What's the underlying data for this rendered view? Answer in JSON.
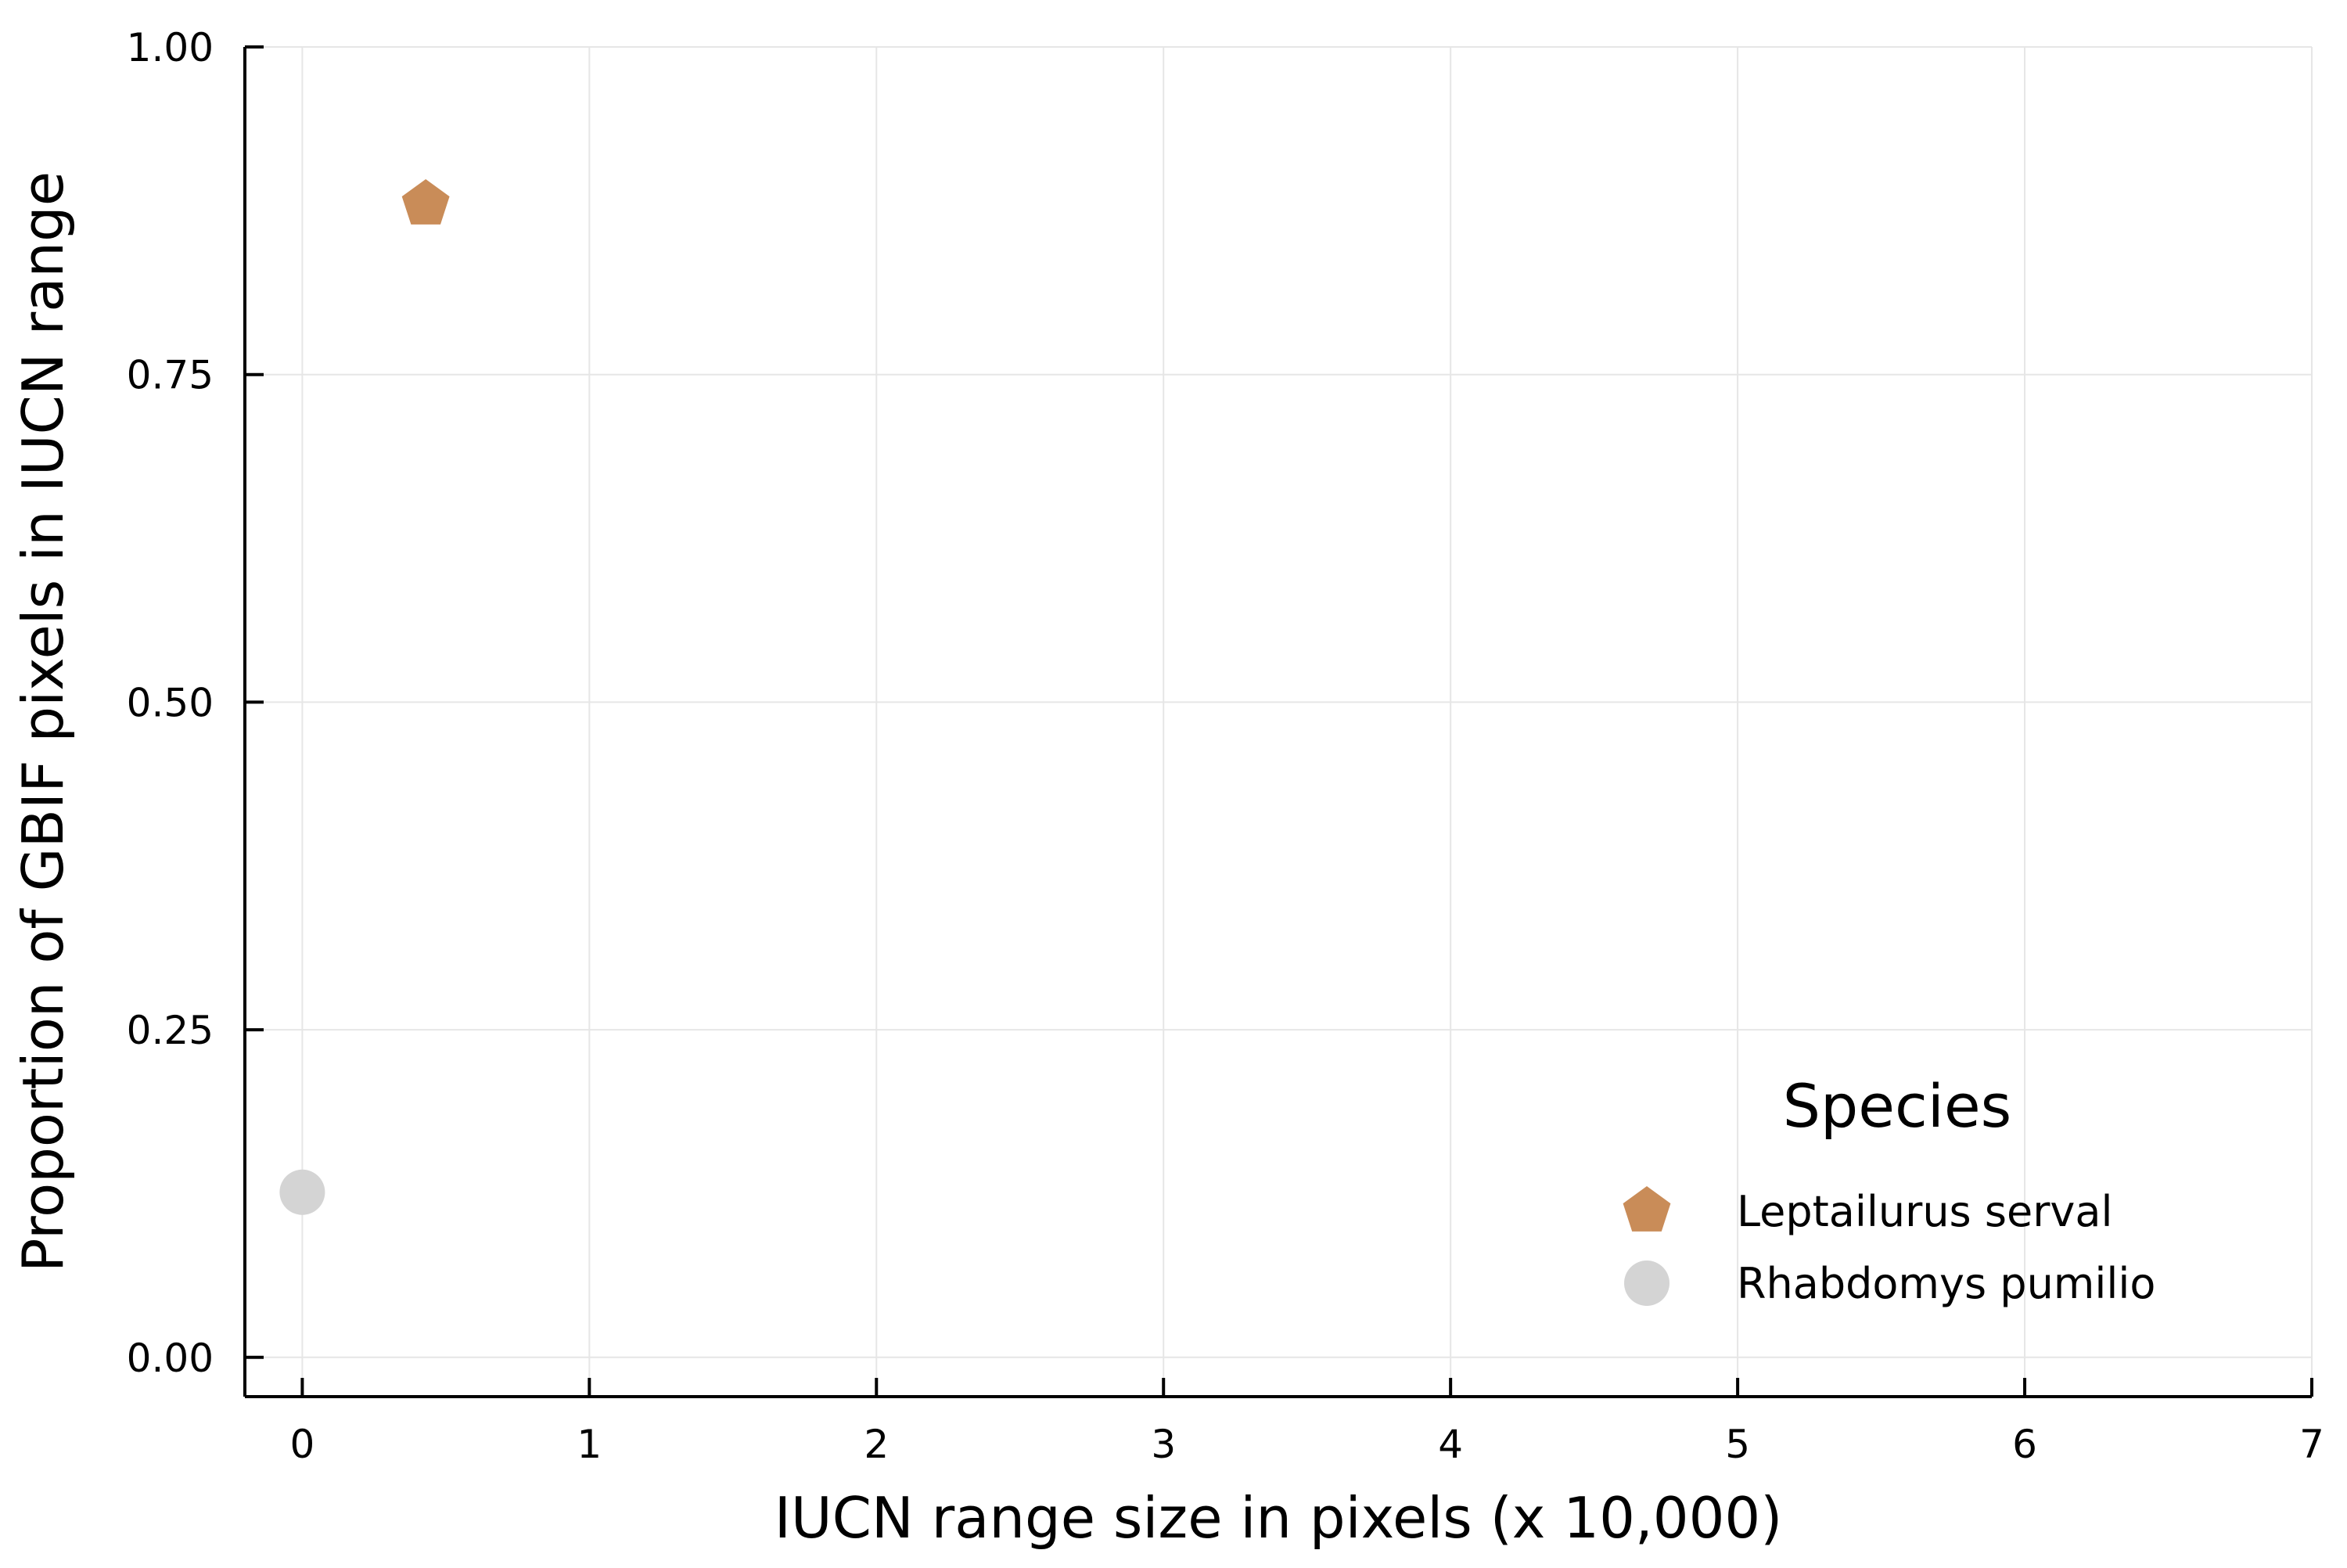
{
  "chart_data": {
    "type": "scatter",
    "title": "",
    "xlabel": "IUCN range size in pixels (x 10,000)",
    "ylabel": "Proportion of GBIF pixels in IUCN range",
    "xlim": [
      -0.2,
      7
    ],
    "ylim": [
      -0.03,
      1.0
    ],
    "x_ticks": [
      0,
      1,
      2,
      3,
      4,
      5,
      6,
      7
    ],
    "x_tick_labels": [
      "0",
      "1",
      "2",
      "3",
      "4",
      "5",
      "6",
      "7"
    ],
    "y_ticks": [
      0,
      0.25,
      0.5,
      0.75,
      1.0
    ],
    "y_tick_labels": [
      "0.00",
      "0.25",
      "0.50",
      "0.75",
      "1.00"
    ],
    "grid": true,
    "legend": {
      "title": "Species",
      "position": "bottom-right"
    },
    "series": [
      {
        "name": "Leptailurus serval",
        "marker": "pentagon",
        "color": "#c98c58",
        "points": [
          {
            "x": 0.43,
            "y": 0.88
          }
        ]
      },
      {
        "name": "Rhabdomys pumilio",
        "marker": "circle",
        "color": "#d4d4d4",
        "points": [
          {
            "x": 0.0,
            "y": 0.126
          }
        ]
      }
    ]
  }
}
